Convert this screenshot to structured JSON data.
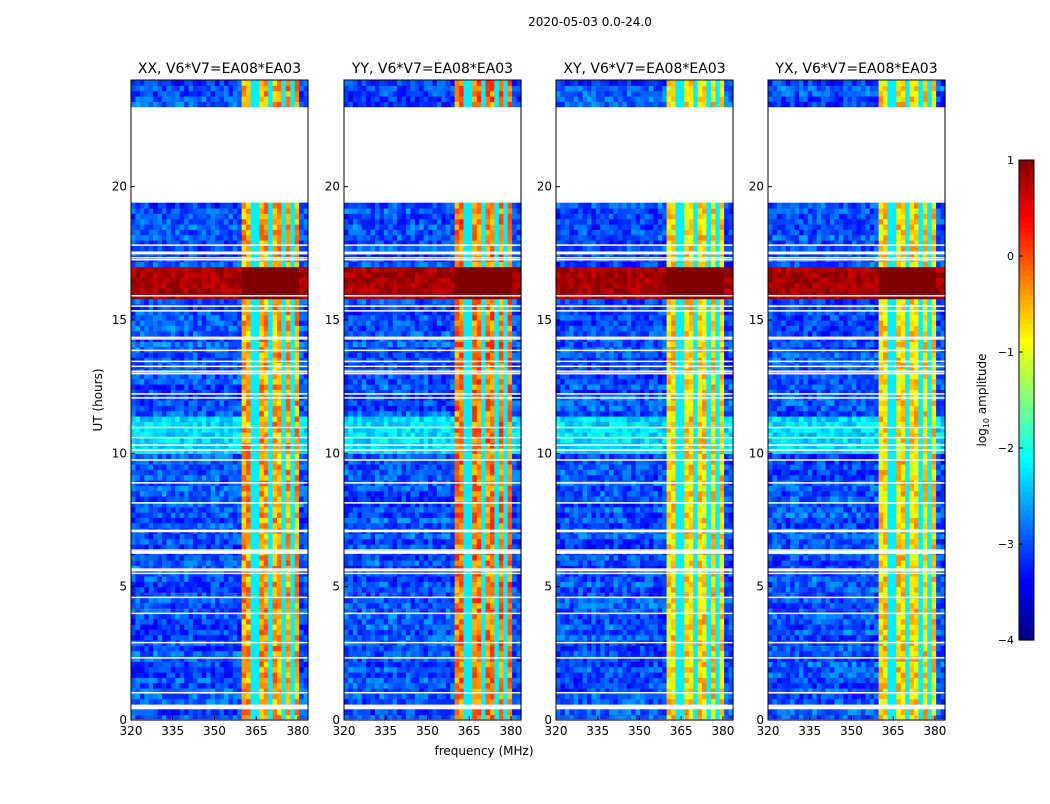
{
  "chart_data": {
    "type": "heatmap",
    "suptitle": "2020-05-03 0.0-24.0",
    "xlabel": "frequency (MHz)",
    "ylabel": "UT (hours)",
    "xlim": [
      320,
      383.6
    ],
    "ylim": [
      0,
      24
    ],
    "xticks": [
      "320",
      "335",
      "350",
      "365",
      "380"
    ],
    "xtick_values": [
      320,
      335,
      350,
      365,
      380
    ],
    "yticks": [
      "0",
      "5",
      "10",
      "15",
      "20"
    ],
    "ytick_values": [
      0,
      5,
      10,
      15,
      20
    ],
    "panels": [
      {
        "title": "XX, V6*V7=EA08*EA03",
        "band_level": -0.4
      },
      {
        "title": "YY, V6*V7=EA08*EA03",
        "band_level": -0.2
      },
      {
        "title": "XY, V6*V7=EA08*EA03",
        "band_level": -0.7
      },
      {
        "title": "YX, V6*V7=EA08*EA03",
        "band_level": -0.7
      }
    ],
    "background_level": -3.0,
    "rfi_band_mhz": [
      360.3,
      380.0
    ],
    "rfi_notches_mhz": [
      364.5,
      369.6,
      374.6,
      378.7
    ],
    "strong_rfi_hours": [
      15.9,
      17.0
    ],
    "strong_rfi_level": 1.0,
    "data_gaps_hours": [
      [
        19.35,
        23.0
      ],
      [
        0.35,
        0.5
      ],
      [
        1.35,
        1.45
      ]
    ],
    "colorbar": {
      "label": "log10 amplitude",
      "range": [
        -4,
        1
      ],
      "ticks": [
        "−4",
        "−3",
        "−2",
        "−1",
        "0",
        "1"
      ],
      "tick_values": [
        -4,
        -3,
        -2,
        -1,
        0,
        1
      ],
      "colormap": "jet"
    }
  }
}
